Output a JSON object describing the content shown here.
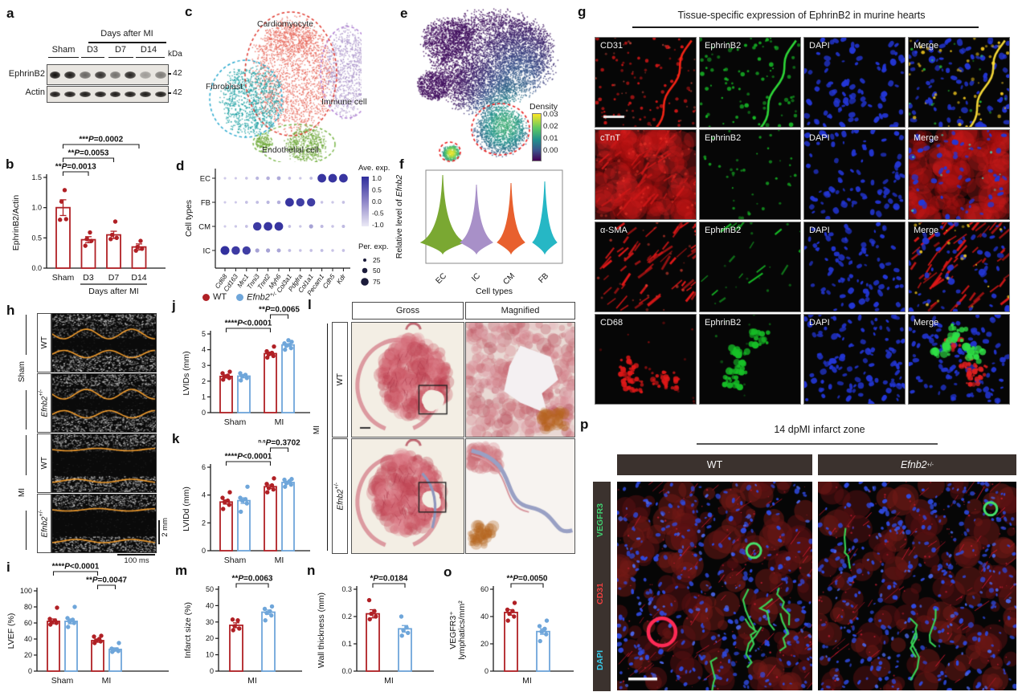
{
  "colors": {
    "wt": "#b02025",
    "ko": "#6fa6da",
    "axis": "#1b1b1b"
  },
  "letters": {
    "a": "a",
    "b": "b",
    "c": "c",
    "d": "d",
    "e": "e",
    "f": "f",
    "g": "g",
    "h": "h",
    "i": "i",
    "j": "j",
    "k": "k",
    "l": "l",
    "m": "m",
    "n": "n",
    "o": "o",
    "p": "p"
  },
  "panel_a": {
    "header": "Days after MI",
    "lanes": [
      "Sham",
      "D3",
      "D7",
      "D14"
    ],
    "kda_header": "kDa",
    "rows": [
      {
        "name": "EphrinB2",
        "kda": "42",
        "bands": [
          1,
          0.95,
          0.6,
          0.85,
          0.55,
          0.9,
          0.35,
          0.5
        ]
      },
      {
        "name": "Actin",
        "kda": "42",
        "bands": [
          0.95,
          0.95,
          0.95,
          0.95,
          0.95,
          0.95,
          0.95,
          0.95
        ]
      }
    ]
  },
  "panel_c": {
    "clusters": [
      {
        "name": "Cardiomyocyte",
        "color": "#e8685c",
        "outline": "#e0392f"
      },
      {
        "name": "Fibroblast",
        "color": "#169ea0",
        "outline": "#2aa9cf"
      },
      {
        "name": "Immune cell",
        "color": "#a890c8",
        "outline": "#b07fd4"
      },
      {
        "name": "Endothelial cell",
        "color": "#6fa839",
        "outline": "#7ab648"
      }
    ]
  },
  "panel_d": {
    "ylabel": "Cell types",
    "rows": [
      "EC",
      "FB",
      "CM",
      "IC"
    ],
    "genes": [
      "Cd68",
      "Cd163",
      "Mrc1",
      "Tnni3",
      "Tnnt2",
      "Myh6",
      "Col3a1",
      "Pdgfra",
      "Col1a1",
      "Pecam1",
      "Cdh5",
      "Kdr"
    ],
    "values": [
      [
        0.06,
        0.06,
        0.1,
        0.18,
        0.22,
        0.26,
        0.12,
        0.08,
        0.14,
        0.95,
        0.95,
        0.95
      ],
      [
        0.06,
        0.06,
        0.12,
        0.14,
        0.18,
        0.22,
        0.95,
        0.9,
        0.9,
        0.1,
        0.08,
        0.12
      ],
      [
        0.06,
        0.08,
        0.12,
        0.92,
        0.95,
        0.95,
        0.12,
        0.08,
        0.3,
        0.16,
        0.1,
        0.16
      ],
      [
        0.98,
        0.92,
        0.9,
        0.3,
        0.3,
        0.28,
        0.14,
        0.1,
        0.12,
        0.14,
        0.1,
        0.12
      ]
    ],
    "legend": {
      "ave_title": "Ave. exp.",
      "ave_ticks": [
        "1.0",
        "0.5",
        "0.0",
        "-0.5",
        "-1.0"
      ],
      "per_title": "Per. exp.",
      "per_ticks": [
        "25",
        "50",
        "75"
      ]
    }
  },
  "panel_e": {
    "legend_title": "Density",
    "legend_ticks": [
      "0.03",
      "0.02",
      "0.01",
      "0.00"
    ]
  },
  "panel_f": {
    "ylabel_prefix": "Relative level of ",
    "ylabel_gene": "Efnb2",
    "xlabel": "Cell types",
    "cats": [
      {
        "label": "EC",
        "color": "#7aa832"
      },
      {
        "label": "IC",
        "color": "#a890c8"
      },
      {
        "label": "CM",
        "color": "#e8602e"
      },
      {
        "label": "FB",
        "color": "#26b7c5"
      }
    ]
  },
  "panel_g": {
    "title": "Tissue-specific expression of EphrinB2 in murine hearts",
    "rows": [
      [
        {
          "label": "CD31",
          "paint": "cd31"
        },
        {
          "label": "EphrinB2",
          "paint": "eph-v"
        },
        {
          "label": "DAPI",
          "paint": "dapi"
        },
        {
          "label": "Merge",
          "paint": "merge-v"
        }
      ],
      [
        {
          "label": "cTnT",
          "paint": "ctnt"
        },
        {
          "label": "EphrinB2",
          "paint": "eph-s"
        },
        {
          "label": "DAPI",
          "paint": "dapi"
        },
        {
          "label": "Merge",
          "paint": "merge-ct"
        }
      ],
      [
        {
          "label": "α-SMA",
          "paint": "asma"
        },
        {
          "label": "EphrinB2",
          "paint": "eph-st"
        },
        {
          "label": "DAPI",
          "paint": "dapi"
        },
        {
          "label": "Merge",
          "paint": "merge-sma"
        }
      ],
      [
        {
          "label": "CD68",
          "paint": "cd68"
        },
        {
          "label": "EphrinB2",
          "paint": "eph-c"
        },
        {
          "label": "DAPI",
          "paint": "dapi-d"
        },
        {
          "label": "Merge",
          "paint": "merge-68"
        }
      ]
    ]
  },
  "panel_h": {
    "groups": [
      "Sham",
      "MI"
    ],
    "rows": [
      {
        "plain": "WT"
      },
      {
        "gene": "Efnb2",
        "sup": "+/-"
      },
      {
        "plain": "WT"
      },
      {
        "gene": "Efnb2",
        "sup": "+/-"
      }
    ],
    "paints": [
      "sham",
      "sham",
      "mi",
      "mi"
    ],
    "xscale": "100 ms",
    "yscale": "2 mm"
  },
  "panel_l": {
    "cols": [
      "Gross",
      "Magnified"
    ],
    "group": "MI",
    "rows": [
      {
        "plain": "WT"
      },
      {
        "gene": "Efnb2",
        "sup": "+/-"
      }
    ]
  },
  "panel_p": {
    "title": "14 dpMI infarct zone",
    "cols": [
      {
        "plain": "WT"
      },
      {
        "gene": "Efnb2",
        "sup": "+/-"
      }
    ],
    "markers": [
      {
        "label": "VEGFR3",
        "color": "#41cf70"
      },
      {
        "label": "CD31",
        "color": "#ef4040"
      },
      {
        "label": "DAPI",
        "color": "#38c8e8"
      }
    ]
  },
  "legend_jk": {
    "wt": "WT",
    "gene": "Efnb2",
    "sup": "+/-"
  },
  "charts": {
    "b": {
      "type": "bar",
      "ylabel": [
        "EphrinB2/Actin"
      ],
      "ylim": [
        0,
        1.5
      ],
      "yticks": [
        {
          "v": 0,
          "t": "0.0"
        },
        {
          "v": 0.5,
          "t": "0.5"
        },
        {
          "v": 1,
          "t": "1.0"
        },
        {
          "v": 1.5,
          "t": "1.5"
        }
      ],
      "groups": [
        {
          "label": "Sham",
          "bars": [
            {
              "c": "wt",
              "v": 1.0,
              "e": 0.13,
              "pts": [
                0.8,
                0.81,
                1.1,
                1.29
              ]
            }
          ]
        },
        {
          "label": "D3",
          "bars": [
            {
              "c": "wt",
              "v": 0.47,
              "e": 0.05,
              "pts": [
                0.37,
                0.45,
                0.48,
                0.59
              ]
            }
          ]
        },
        {
          "label": "D7",
          "bars": [
            {
              "c": "wt",
              "v": 0.55,
              "e": 0.06,
              "pts": [
                0.48,
                0.5,
                0.55,
                0.77
              ]
            }
          ]
        },
        {
          "label": "D14",
          "bars": [
            {
              "c": "wt",
              "v": 0.35,
              "e": 0.05,
              "pts": [
                0.29,
                0.32,
                0.35,
                0.45
              ]
            }
          ]
        }
      ],
      "pvals": [
        {
          "a": 0,
          "b": 3,
          "row": 2,
          "s": "***",
          "t": "P=0.0002"
        },
        {
          "a": 0,
          "b": 2,
          "row": 1,
          "s": "**",
          "t": "P=0.0053"
        },
        {
          "a": 0,
          "b": 1,
          "row": 0,
          "s": "**",
          "t": "P=0.0013"
        }
      ],
      "xsub": {
        "text": "Days after MI",
        "from": 1,
        "to": 3
      }
    },
    "i": {
      "type": "bar",
      "ylabel": [
        "LVEF (%)"
      ],
      "ylim": [
        0,
        100
      ],
      "yticks": [
        {
          "v": 0,
          "t": "0"
        },
        {
          "v": 20,
          "t": "20"
        },
        {
          "v": 40,
          "t": "40"
        },
        {
          "v": 60,
          "t": "60"
        },
        {
          "v": 80,
          "t": "80"
        },
        {
          "v": 100,
          "t": "100"
        }
      ],
      "groups": [
        {
          "label": "Sham",
          "bars": [
            {
              "c": "wt",
              "v": 62,
              "e": 3,
              "pts": [
                58,
                60,
                61,
                63,
                65,
                79
              ]
            },
            {
              "c": "ko",
              "v": 62,
              "e": 3,
              "pts": [
                55,
                60,
                62,
                64,
                66,
                80
              ]
            }
          ]
        },
        {
          "label": "MI",
          "bars": [
            {
              "c": "wt",
              "v": 38,
              "e": 2,
              "pts": [
                35,
                37,
                38,
                40,
                43,
                44
              ]
            },
            {
              "c": "ko",
              "v": 27,
              "e": 2,
              "pts": [
                24,
                25,
                26,
                27,
                28,
                35
              ]
            }
          ]
        }
      ],
      "pvals": [
        {
          "a": 0,
          "b": 2,
          "row": 1,
          "s": "****",
          "t": "P<0.0001"
        },
        {
          "a": 2,
          "b": 3,
          "row": 0,
          "s": "**",
          "t": "P=0.0047"
        }
      ]
    },
    "j": {
      "type": "bar",
      "ylabel": [
        "LVIDs (mm)"
      ],
      "ylim": [
        0,
        5
      ],
      "yticks": [
        {
          "v": 0,
          "t": "0"
        },
        {
          "v": 1,
          "t": "1"
        },
        {
          "v": 2,
          "t": "2"
        },
        {
          "v": 3,
          "t": "3"
        },
        {
          "v": 4,
          "t": "4"
        },
        {
          "v": 5,
          "t": "5"
        }
      ],
      "groups": [
        {
          "label": "Sham",
          "bars": [
            {
              "c": "wt",
              "v": 2.3,
              "e": 0.1,
              "pts": [
                2.1,
                2.2,
                2.3,
                2.35,
                2.5,
                2.6
              ]
            },
            {
              "c": "ko",
              "v": 2.32,
              "e": 0.1,
              "pts": [
                2.05,
                2.2,
                2.3,
                2.4,
                2.5
              ]
            }
          ]
        },
        {
          "label": "MI",
          "bars": [
            {
              "c": "wt",
              "v": 3.75,
              "e": 0.1,
              "pts": [
                3.5,
                3.6,
                3.7,
                3.8,
                3.9,
                4.2
              ]
            },
            {
              "c": "ko",
              "v": 4.3,
              "e": 0.08,
              "pts": [
                4.0,
                4.1,
                4.25,
                4.3,
                4.4,
                4.5,
                4.6
              ]
            }
          ]
        }
      ],
      "pvals": [
        {
          "a": 0,
          "b": 2,
          "row": 0,
          "s": "****",
          "t": "P<0.0001"
        },
        {
          "a": 2,
          "b": 3,
          "row": 1,
          "s": "**",
          "t": "P=0.0065"
        }
      ]
    },
    "k": {
      "type": "bar",
      "ylabel": [
        "LVIDd (mm)"
      ],
      "ylim": [
        0,
        6
      ],
      "yticks": [
        {
          "v": 0,
          "t": "0"
        },
        {
          "v": 2,
          "t": "2"
        },
        {
          "v": 4,
          "t": "4"
        },
        {
          "v": 6,
          "t": "6"
        }
      ],
      "groups": [
        {
          "label": "Sham",
          "bars": [
            {
              "c": "wt",
              "v": 3.5,
              "e": 0.15,
              "pts": [
                3.0,
                3.3,
                3.5,
                3.6,
                3.8,
                4.2
              ]
            },
            {
              "c": "ko",
              "v": 3.6,
              "e": 0.2,
              "pts": [
                2.8,
                3.4,
                3.6,
                3.7,
                3.8,
                4.6
              ]
            }
          ]
        },
        {
          "label": "MI",
          "bars": [
            {
              "c": "wt",
              "v": 4.6,
              "e": 0.12,
              "pts": [
                4.2,
                4.4,
                4.5,
                4.7,
                4.8,
                5.2
              ]
            },
            {
              "c": "ko",
              "v": 4.9,
              "e": 0.1,
              "pts": [
                4.6,
                4.75,
                4.85,
                5.0,
                5.1,
                5.15
              ]
            }
          ]
        }
      ],
      "pvals": [
        {
          "a": 0,
          "b": 2,
          "row": 0,
          "s": "****",
          "t": "P<0.0001"
        },
        {
          "a": 2,
          "b": 3,
          "row": 1,
          "s": "n.s",
          "t": "P=0.3702"
        }
      ]
    },
    "m": {
      "type": "bar",
      "ylabel": [
        "Infarct size (%)"
      ],
      "ylim": [
        0,
        50
      ],
      "yticks": [
        {
          "v": 0,
          "t": "0"
        },
        {
          "v": 10,
          "t": "10"
        },
        {
          "v": 20,
          "t": "20"
        },
        {
          "v": 30,
          "t": "30"
        },
        {
          "v": 40,
          "t": "40"
        },
        {
          "v": 50,
          "t": "50"
        }
      ],
      "groups": [
        {
          "label": "MI",
          "bars": [
            {
              "c": "wt",
              "v": 28,
              "e": 1.5,
              "pts": [
                25,
                26,
                27.5,
                31,
                31.5
              ]
            },
            {
              "c": "ko",
              "v": 36,
              "e": 1.3,
              "pts": [
                31,
                34,
                35.5,
                36.5,
                38,
                39.5
              ]
            }
          ]
        }
      ],
      "pvals": [
        {
          "a": 0,
          "b": 1,
          "row": 0,
          "s": "**",
          "t": "P=0.0063"
        }
      ]
    },
    "n": {
      "type": "bar",
      "ylabel": [
        "Wall thickness (mm)"
      ],
      "ylim": [
        0,
        0.3
      ],
      "yticks": [
        {
          "v": 0,
          "t": "0.0"
        },
        {
          "v": 0.1,
          "t": "0.1"
        },
        {
          "v": 0.2,
          "t": "0.2"
        },
        {
          "v": 0.3,
          "t": "0.3"
        }
      ],
      "groups": [
        {
          "label": "MI",
          "bars": [
            {
              "c": "wt",
              "v": 0.21,
              "e": 0.015,
              "pts": [
                0.19,
                0.2,
                0.21,
                0.22,
                0.26
              ]
            },
            {
              "c": "ko",
              "v": 0.155,
              "e": 0.012,
              "pts": [
                0.13,
                0.14,
                0.15,
                0.16,
                0.2
              ]
            }
          ]
        }
      ],
      "pvals": [
        {
          "a": 0,
          "b": 1,
          "row": 0,
          "s": "*",
          "t": "P=0.0184"
        }
      ]
    },
    "o": {
      "type": "bar",
      "ylabel": [
        "VEGFR3⁺",
        "lymphatics/mm²"
      ],
      "ylim": [
        0,
        60
      ],
      "yticks": [
        {
          "v": 0,
          "t": "0"
        },
        {
          "v": 20,
          "t": "20"
        },
        {
          "v": 40,
          "t": "40"
        },
        {
          "v": 60,
          "t": "60"
        }
      ],
      "groups": [
        {
          "label": "MI",
          "bars": [
            {
              "c": "wt",
              "v": 43,
              "e": 2,
              "pts": [
                37,
                40,
                42,
                44,
                45,
                50
              ]
            },
            {
              "c": "ko",
              "v": 29,
              "e": 2,
              "pts": [
                22,
                27,
                29,
                31,
                33,
                37
              ]
            }
          ]
        }
      ],
      "pvals": [
        {
          "a": 0,
          "b": 1,
          "row": 0,
          "s": "**",
          "t": "P=0.0050"
        }
      ]
    }
  }
}
